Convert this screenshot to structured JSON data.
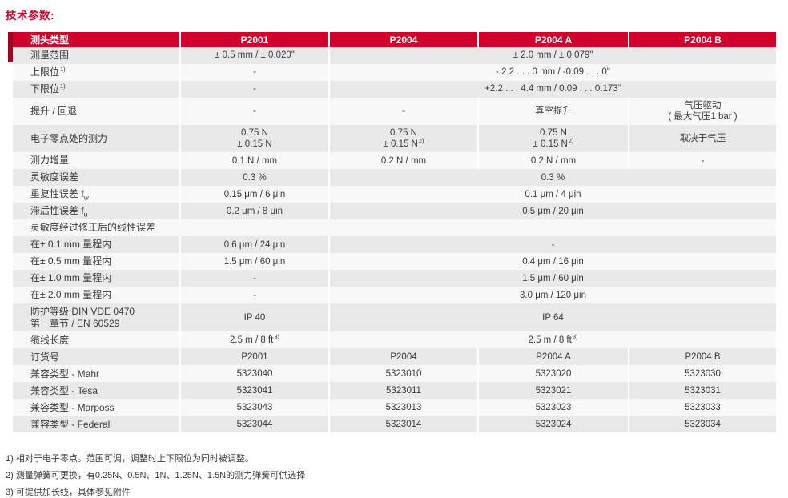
{
  "page": {
    "title": "技术参数:"
  },
  "colors": {
    "header_red": "#d1002b",
    "accent_dark_red": "#a10023",
    "row_gray": "#e9e9e9",
    "row_light": "#f8f8f8",
    "text": "#3a3a3a"
  },
  "table": {
    "header": {
      "label": "测头类型",
      "columns": [
        "P2001",
        "P2004",
        "P2004 A",
        "P2004 B"
      ]
    },
    "rows": [
      {
        "label": [
          {
            "t": "测量范围"
          }
        ],
        "cells": [
          {
            "span": 1,
            "lines": [
              {
                "t": "± 0.5 mm / ± 0.020\""
              }
            ]
          },
          {
            "span": 3,
            "lines": [
              {
                "t": "± 2.0 mm / ± 0.079\""
              }
            ]
          }
        ]
      },
      {
        "label": [
          {
            "t": "上限位",
            "sup": "1)"
          }
        ],
        "cells": [
          {
            "span": 1,
            "lines": [
              {
                "t": "-"
              }
            ]
          },
          {
            "span": 3,
            "lines": [
              {
                "t": "- 2.2 . . . 0 mm / -0.09 . . . 0\""
              }
            ]
          }
        ]
      },
      {
        "label": [
          {
            "t": "下限位",
            "sup": "1)"
          }
        ],
        "cells": [
          {
            "span": 1,
            "lines": [
              {
                "t": "-"
              }
            ]
          },
          {
            "span": 3,
            "lines": [
              {
                "t": "+2.2 . . . 4.4 mm / 0.09 . . . 0.173\""
              }
            ]
          }
        ]
      },
      {
        "label": [
          {
            "t": "提升 / 回退"
          }
        ],
        "cells": [
          {
            "span": 1,
            "lines": [
              {
                "t": "-"
              }
            ]
          },
          {
            "span": 1,
            "lines": [
              {
                "t": "-"
              }
            ]
          },
          {
            "span": 1,
            "lines": [
              {
                "t": "真空提升"
              }
            ]
          },
          {
            "span": 1,
            "lines": [
              {
                "t": "气压驱动"
              },
              {
                "t": "( 最大气压1 bar )"
              }
            ]
          }
        ]
      },
      {
        "label": [
          {
            "t": "电子零点处的测力"
          }
        ],
        "cells": [
          {
            "span": 1,
            "lines": [
              {
                "t": "0.75 N"
              },
              {
                "t": "± 0.15 N"
              }
            ]
          },
          {
            "span": 1,
            "lines": [
              {
                "t": "0.75 N"
              },
              {
                "t": "± 0.15 N",
                "sup": "2)"
              }
            ]
          },
          {
            "span": 1,
            "lines": [
              {
                "t": "0.75 N"
              },
              {
                "t": "± 0.15 N",
                "sup": "2)"
              }
            ]
          },
          {
            "span": 1,
            "lines": [
              {
                "t": "取决于气压"
              }
            ]
          }
        ]
      },
      {
        "label": [
          {
            "t": "测力增量"
          }
        ],
        "cells": [
          {
            "span": 1,
            "lines": [
              {
                "t": "0.1 N / mm"
              }
            ]
          },
          {
            "span": 1,
            "lines": [
              {
                "t": "0.2 N / mm"
              }
            ]
          },
          {
            "span": 1,
            "lines": [
              {
                "t": "0.2 N / mm"
              }
            ]
          },
          {
            "span": 1,
            "lines": [
              {
                "t": "-"
              }
            ]
          }
        ]
      },
      {
        "label": [
          {
            "t": "灵敏度误差"
          }
        ],
        "cells": [
          {
            "span": 1,
            "lines": [
              {
                "t": "0.3 %"
              }
            ]
          },
          {
            "span": 3,
            "lines": [
              {
                "t": "0.3 %"
              }
            ]
          }
        ]
      },
      {
        "label": [
          {
            "t": "重复性误差 f",
            "sub": "w"
          }
        ],
        "cells": [
          {
            "span": 1,
            "lines": [
              {
                "t": "0.15 μm / 6 μin"
              }
            ]
          },
          {
            "span": 3,
            "lines": [
              {
                "t": "0.1 μm / 4 μin"
              }
            ]
          }
        ]
      },
      {
        "label": [
          {
            "t": "滞后性误差 f",
            "sub": "u"
          }
        ],
        "cells": [
          {
            "span": 1,
            "lines": [
              {
                "t": "0.2 μm / 8 μin"
              }
            ]
          },
          {
            "span": 3,
            "lines": [
              {
                "t": "0.5 μm / 20 μin"
              }
            ]
          }
        ]
      },
      {
        "label": [
          {
            "t": "灵敏度经过修正后的线性误差"
          }
        ],
        "cells": []
      },
      {
        "label": [
          {
            "t": "在± 0.1 mm 量程内"
          }
        ],
        "cells": [
          {
            "span": 1,
            "lines": [
              {
                "t": "0.6 μm / 24 μin"
              }
            ]
          },
          {
            "span": 3,
            "lines": [
              {
                "t": "-"
              }
            ]
          }
        ]
      },
      {
        "label": [
          {
            "t": "在± 0.5 mm 量程内"
          }
        ],
        "cells": [
          {
            "span": 1,
            "lines": [
              {
                "t": "1.5 μm / 60 μin"
              }
            ]
          },
          {
            "span": 3,
            "lines": [
              {
                "t": "0.4 μm / 16 μin"
              }
            ]
          }
        ]
      },
      {
        "label": [
          {
            "t": "在± 1.0 mm 量程内"
          }
        ],
        "cells": [
          {
            "span": 1,
            "lines": [
              {
                "t": "-"
              }
            ]
          },
          {
            "span": 3,
            "lines": [
              {
                "t": "1.5 μm / 60 μin"
              }
            ]
          }
        ]
      },
      {
        "label": [
          {
            "t": "在± 2.0 mm 量程内"
          }
        ],
        "cells": [
          {
            "span": 1,
            "lines": [
              {
                "t": "-"
              }
            ]
          },
          {
            "span": 3,
            "lines": [
              {
                "t": "3.0 μm / 120 μin"
              }
            ]
          }
        ]
      },
      {
        "label": [
          {
            "t": "防护等级 DIN VDE 0470"
          },
          {
            "t": "第一章节 / EN 60529"
          }
        ],
        "cells": [
          {
            "span": 1,
            "lines": [
              {
                "t": "IP 40"
              }
            ]
          },
          {
            "span": 3,
            "lines": [
              {
                "t": "IP 64"
              }
            ]
          }
        ]
      },
      {
        "label": [
          {
            "t": "缆线长度"
          }
        ],
        "cells": [
          {
            "span": 1,
            "lines": [
              {
                "t": "2.5 m / 8 ft",
                "sup": "3)"
              }
            ]
          },
          {
            "span": 3,
            "lines": [
              {
                "t": "2.5 m / 8 ft",
                "sup": "3)"
              }
            ]
          }
        ]
      },
      {
        "label": [
          {
            "t": "订货号"
          }
        ],
        "cells": [
          {
            "span": 1,
            "lines": [
              {
                "t": "P2001"
              }
            ]
          },
          {
            "span": 1,
            "lines": [
              {
                "t": "P2004"
              }
            ]
          },
          {
            "span": 1,
            "lines": [
              {
                "t": "P2004 A"
              }
            ]
          },
          {
            "span": 1,
            "lines": [
              {
                "t": "P2004 B"
              }
            ]
          }
        ]
      },
      {
        "label": [
          {
            "t": "兼容类型 - Mahr"
          }
        ],
        "cells": [
          {
            "span": 1,
            "lines": [
              {
                "t": "5323040"
              }
            ]
          },
          {
            "span": 1,
            "lines": [
              {
                "t": "5323010"
              }
            ]
          },
          {
            "span": 1,
            "lines": [
              {
                "t": "5323020"
              }
            ]
          },
          {
            "span": 1,
            "lines": [
              {
                "t": "5323030"
              }
            ]
          }
        ]
      },
      {
        "label": [
          {
            "t": "兼容类型 - Tesa"
          }
        ],
        "cells": [
          {
            "span": 1,
            "lines": [
              {
                "t": "5323041"
              }
            ]
          },
          {
            "span": 1,
            "lines": [
              {
                "t": "5323011"
              }
            ]
          },
          {
            "span": 1,
            "lines": [
              {
                "t": "5323021"
              }
            ]
          },
          {
            "span": 1,
            "lines": [
              {
                "t": "5323031"
              }
            ]
          }
        ]
      },
      {
        "label": [
          {
            "t": "兼容类型 - Marposs"
          }
        ],
        "cells": [
          {
            "span": 1,
            "lines": [
              {
                "t": "5323043"
              }
            ]
          },
          {
            "span": 1,
            "lines": [
              {
                "t": "5323013"
              }
            ]
          },
          {
            "span": 1,
            "lines": [
              {
                "t": "5323023"
              }
            ]
          },
          {
            "span": 1,
            "lines": [
              {
                "t": "5323033"
              }
            ]
          }
        ]
      },
      {
        "label": [
          {
            "t": "兼容类型 - Federal"
          }
        ],
        "cells": [
          {
            "span": 1,
            "lines": [
              {
                "t": "5323044"
              }
            ]
          },
          {
            "span": 1,
            "lines": [
              {
                "t": "5323014"
              }
            ]
          },
          {
            "span": 1,
            "lines": [
              {
                "t": "5323024"
              }
            ]
          },
          {
            "span": 1,
            "lines": [
              {
                "t": "5323034"
              }
            ]
          }
        ]
      }
    ]
  },
  "footnotes": [
    "1) 相对于电子零点。范围可调，调整时上下限位为同时被调整。",
    "2) 测量弹簧可更换，有0.25N、0.5N、1N、1.25N、1.5N的测力弹簧可供选择",
    "3) 可提供加长线，具体参见附件"
  ]
}
